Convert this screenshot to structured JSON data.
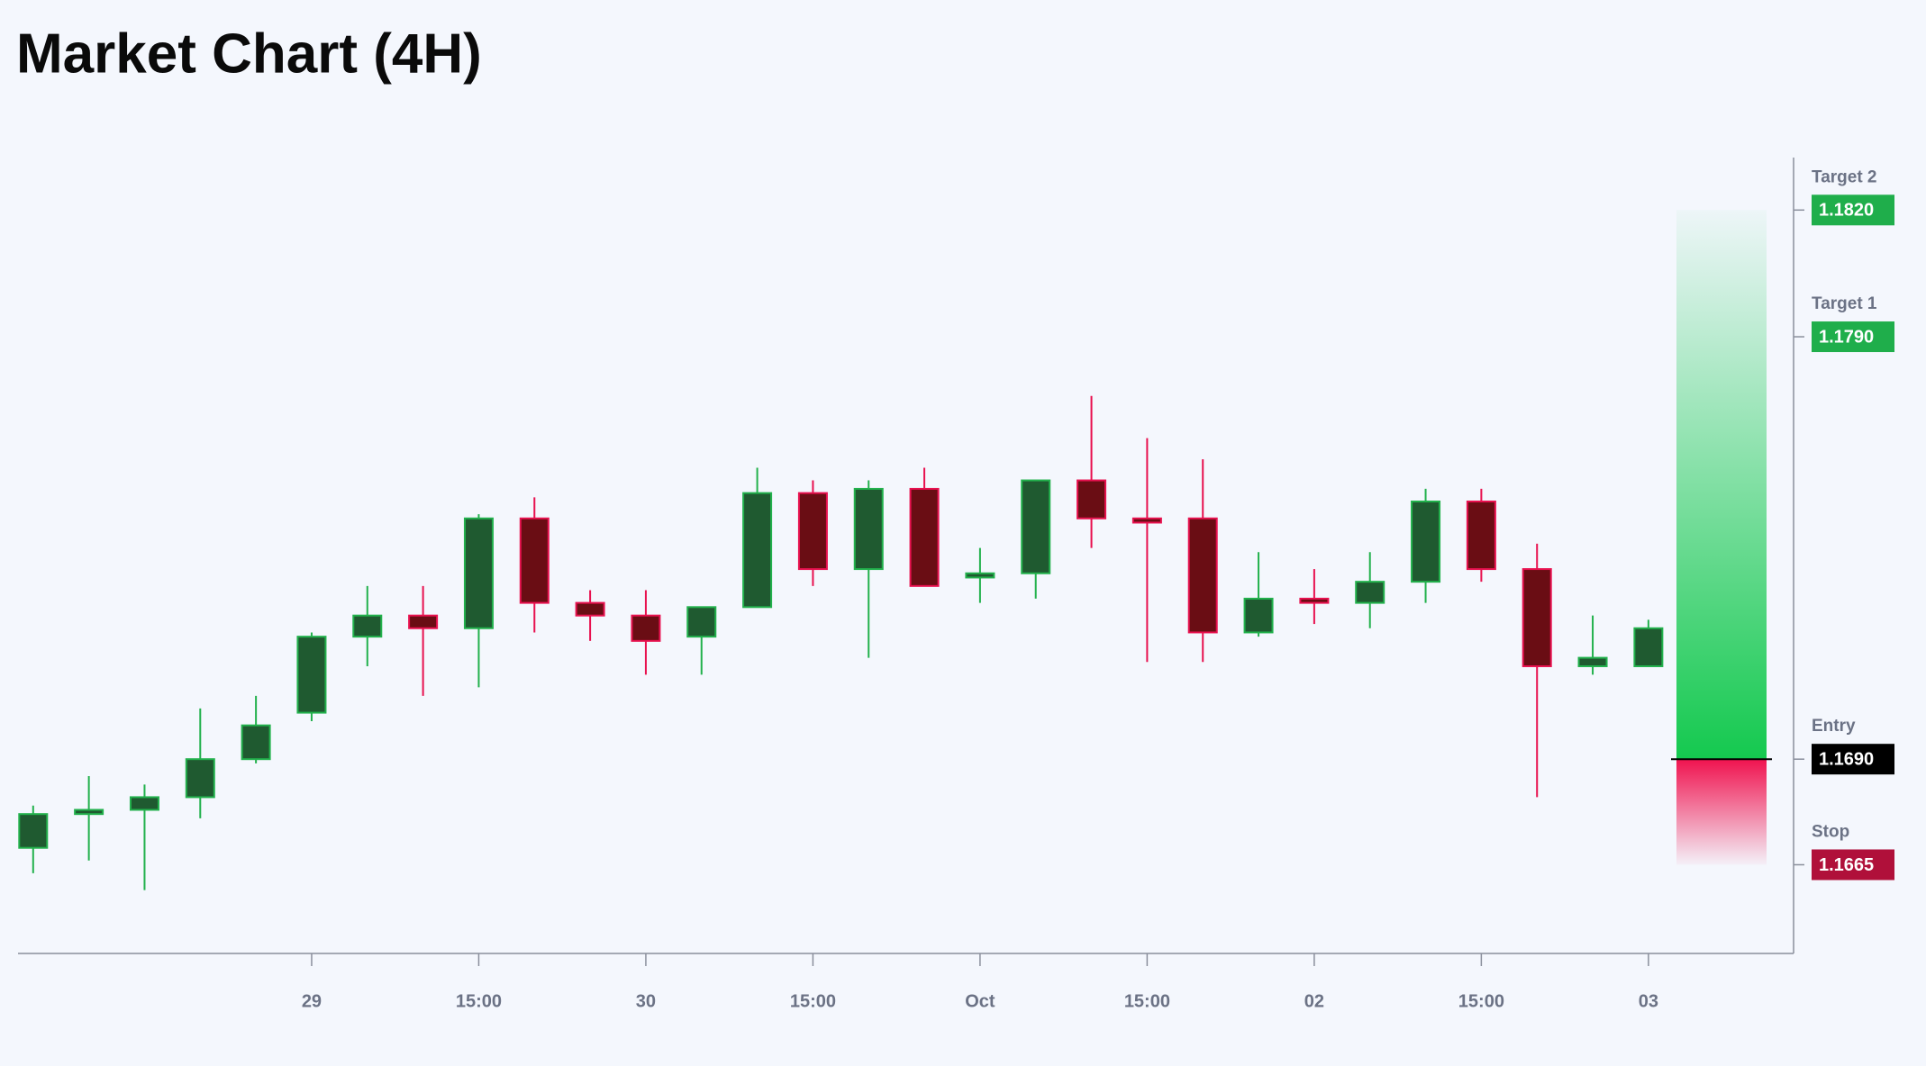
{
  "chart_data": {
    "type": "candlestick",
    "title": "Market Chart (4H)",
    "categories": [
      null,
      null,
      null,
      null,
      null,
      "29",
      null,
      null,
      "15:00",
      null,
      null,
      "30",
      null,
      null,
      "15:00",
      null,
      null,
      "Oct",
      null,
      null,
      "15:00",
      null,
      null,
      "02",
      null,
      null,
      "15:00",
      null,
      null,
      "03"
    ],
    "open": [
      1.1669,
      1.1677,
      1.1678,
      1.1681,
      1.169,
      1.1701,
      1.1719,
      1.1724,
      1.1721,
      1.1747,
      1.1727,
      1.1724,
      1.1719,
      1.1726,
      1.1753,
      1.1735,
      1.1754,
      1.1733,
      1.1734,
      1.1756,
      1.1747,
      1.1747,
      1.172,
      1.1728,
      1.1727,
      1.1732,
      1.1751,
      1.1735,
      1.1712,
      1.1712
    ],
    "high": [
      1.1679,
      1.1686,
      1.1684,
      1.1702,
      1.1705,
      1.172,
      1.1731,
      1.1731,
      1.1748,
      1.1752,
      1.173,
      1.173,
      1.1726,
      1.1759,
      1.1756,
      1.1756,
      1.1759,
      1.174,
      1.1756,
      1.1776,
      1.1766,
      1.1761,
      1.1739,
      1.1735,
      1.1739,
      1.1754,
      1.1754,
      1.1741,
      1.1724,
      1.1723
    ],
    "low": [
      1.1663,
      1.1666,
      1.1659,
      1.1676,
      1.1689,
      1.1699,
      1.1712,
      1.1705,
      1.1707,
      1.172,
      1.1718,
      1.171,
      1.171,
      1.1726,
      1.1731,
      1.1714,
      1.1731,
      1.1727,
      1.1728,
      1.174,
      1.1713,
      1.1713,
      1.1719,
      1.1722,
      1.1721,
      1.1727,
      1.1732,
      1.1681,
      1.171,
      1.1712
    ],
    "close": [
      1.1677,
      1.1678,
      1.1681,
      1.169,
      1.1698,
      1.1719,
      1.1724,
      1.1721,
      1.1747,
      1.1727,
      1.1724,
      1.1718,
      1.1726,
      1.1753,
      1.1735,
      1.1754,
      1.1731,
      1.1734,
      1.1756,
      1.1747,
      1.1746,
      1.172,
      1.1728,
      1.1727,
      1.1732,
      1.1751,
      1.1735,
      1.1712,
      1.1714,
      1.1721
    ],
    "up_color": {
      "body": "#1f5a30",
      "line": "#22b14c"
    },
    "down_color": {
      "body": "#6a0d14",
      "line": "#e8114f"
    },
    "ylim": [
      1.1644,
      1.1832
    ],
    "position": {
      "targets": [
        {
          "name": "Target 2",
          "value": 1.182,
          "value_label": "1.1820",
          "color": "#1fae4b"
        },
        {
          "name": "Target 1",
          "value": 1.179,
          "value_label": "1.1790",
          "color": "#1fae4b"
        }
      ],
      "entry": {
        "name": "Entry",
        "value": 1.169,
        "value_label": "1.1690",
        "color": "#000000"
      },
      "stop": {
        "name": "Stop",
        "value": 1.1665,
        "value_label": "1.1665",
        "color": "#b0103a"
      }
    }
  }
}
